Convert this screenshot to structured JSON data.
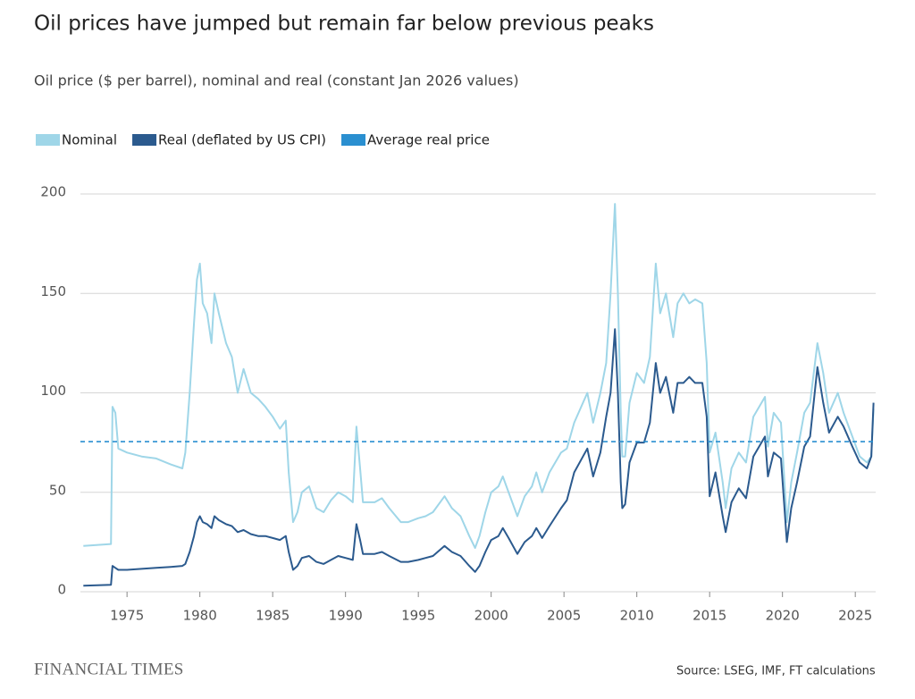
{
  "chart_data": {
    "type": "line",
    "title": "Oil prices have jumped but remain far below previous peaks",
    "subtitle": "Oil price ($ per barrel), nominal and real (constant Jan 2026 values)",
    "x": [
      1972.0,
      1973.9,
      1974.0,
      1974.2,
      1974.4,
      1975,
      1976,
      1977,
      1978,
      1978.8,
      1979.0,
      1979.3,
      1979.6,
      1979.8,
      1980.0,
      1980.2,
      1980.5,
      1980.8,
      1981.0,
      1981.3,
      1981.8,
      1982.2,
      1982.6,
      1983.0,
      1983.5,
      1984,
      1984.5,
      1985,
      1985.5,
      1985.9,
      1986.1,
      1986.4,
      1986.7,
      1987,
      1987.5,
      1988,
      1988.5,
      1989,
      1989.5,
      1990,
      1990.5,
      1990.75,
      1991.0,
      1991.2,
      1992,
      1992.5,
      1993,
      1993.8,
      1994.3,
      1995,
      1995.5,
      1996,
      1996.8,
      1997.3,
      1997.9,
      1998.5,
      1998.9,
      1999.2,
      1999.6,
      2000,
      2000.5,
      2000.8,
      2001.2,
      2001.8,
      2002.3,
      2002.8,
      2003.1,
      2003.5,
      2004,
      2004.8,
      2005.2,
      2005.7,
      2006.3,
      2006.6,
      2007,
      2007.5,
      2007.9,
      2008.2,
      2008.5,
      2008.7,
      2008.9,
      2009.0,
      2009.2,
      2009.5,
      2010,
      2010.5,
      2010.9,
      2011.3,
      2011.6,
      2012,
      2012.5,
      2012.8,
      2013.2,
      2013.6,
      2014,
      2014.5,
      2014.8,
      2015.0,
      2015.4,
      2015.9,
      2016.1,
      2016.5,
      2017,
      2017.5,
      2018,
      2018.8,
      2019.0,
      2019.4,
      2019.9,
      2020.3,
      2020.6,
      2021,
      2021.5,
      2021.9,
      2022.4,
      2022.8,
      2023.2,
      2023.8,
      2024.2,
      2024.8,
      2025.3,
      2025.8,
      2026.1,
      2026.25
    ],
    "series": [
      {
        "name": "Nominal",
        "color": "#9fd6e8",
        "values": [
          23,
          24,
          93,
          90,
          72,
          70,
          68,
          67,
          64,
          62,
          70,
          100,
          135,
          157,
          165,
          145,
          140,
          125,
          150,
          140,
          125,
          118,
          100,
          112,
          100,
          97,
          93,
          88,
          82,
          86,
          60,
          35,
          40,
          50,
          53,
          42,
          40,
          46,
          50,
          48,
          45,
          83,
          62,
          45,
          45,
          47,
          42,
          35,
          35,
          37,
          38,
          40,
          48,
          42,
          38,
          28,
          22,
          28,
          40,
          50,
          53,
          58,
          50,
          38,
          48,
          53,
          60,
          50,
          60,
          70,
          72,
          85,
          95,
          100,
          85,
          100,
          115,
          150,
          195,
          150,
          90,
          68,
          68,
          95,
          110,
          105,
          118,
          165,
          140,
          150,
          128,
          145,
          150,
          145,
          147,
          145,
          115,
          70,
          80,
          55,
          42,
          62,
          70,
          65,
          88,
          98,
          73,
          90,
          85,
          35,
          55,
          70,
          90,
          95,
          125,
          110,
          90,
          100,
          90,
          78,
          68,
          65,
          68,
          92
        ]
      },
      {
        "name": "Real (deflated by US CPI)",
        "color": "#2b5a8e",
        "values": [
          3,
          3.5,
          13,
          12,
          11,
          11,
          11.5,
          12,
          12.5,
          13,
          14,
          20,
          28,
          35,
          38,
          35,
          34,
          32,
          38,
          36,
          34,
          33,
          30,
          31,
          29,
          28,
          28,
          27,
          26,
          28,
          20,
          11,
          13,
          17,
          18,
          15,
          14,
          16,
          18,
          17,
          16,
          34,
          26,
          19,
          19,
          20,
          18,
          15,
          15,
          16,
          17,
          18,
          23,
          20,
          18,
          13,
          10,
          13,
          20,
          26,
          28,
          32,
          27,
          19,
          25,
          28,
          32,
          27,
          33,
          42,
          46,
          60,
          68,
          72,
          58,
          70,
          88,
          100,
          132,
          100,
          55,
          42,
          44,
          65,
          75,
          75,
          85,
          115,
          100,
          108,
          90,
          105,
          105,
          108,
          105,
          105,
          88,
          48,
          60,
          38,
          30,
          45,
          52,
          47,
          68,
          78,
          58,
          70,
          67,
          25,
          42,
          55,
          73,
          78,
          113,
          95,
          80,
          88,
          83,
          73,
          65,
          62,
          68,
          95
        ]
      }
    ],
    "reference_line": {
      "name": "Average real price",
      "value": 75.5,
      "color": "#2a8fd0"
    },
    "xlim": [
      1971.8,
      2026.4
    ],
    "xticks": [
      1975,
      1980,
      1985,
      1990,
      1995,
      2000,
      2005,
      2010,
      2015,
      2020,
      2025
    ],
    "ylim": [
      0,
      200
    ],
    "yticks": [
      0,
      50,
      100,
      150,
      200
    ],
    "grid": true,
    "brand": "FINANCIAL TIMES",
    "source": "Source: LSEG, IMF, FT calculations"
  }
}
